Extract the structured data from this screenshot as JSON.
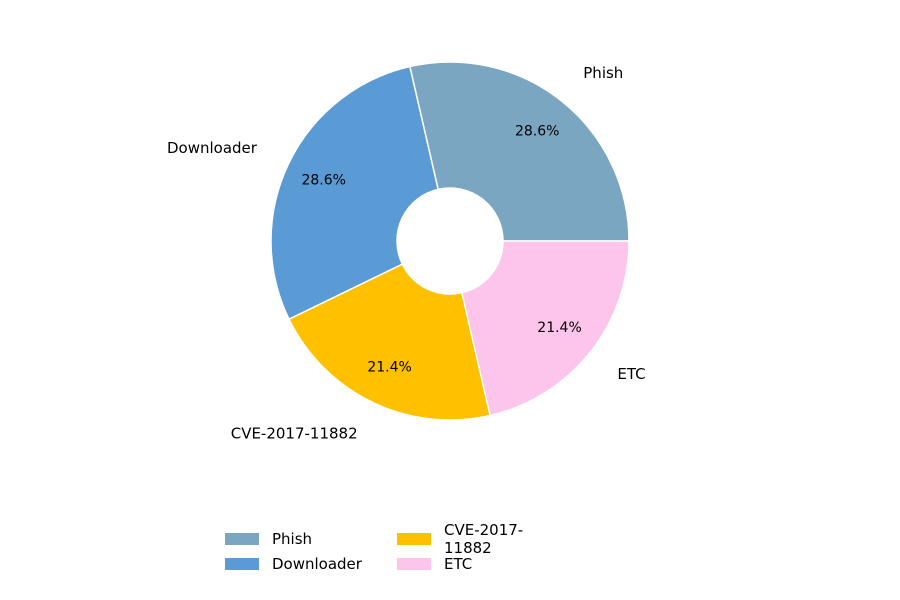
{
  "chart_data": {
    "type": "pie",
    "donut": true,
    "slices": [
      {
        "label": "Phish",
        "value": 28.6,
        "pct_label": "28.6%",
        "color": "#7ba6c1"
      },
      {
        "label": "Downloader",
        "value": 28.6,
        "pct_label": "28.6%",
        "color": "#5b9bd5"
      },
      {
        "label": "CVE-2017-11882",
        "value": 21.4,
        "pct_label": "21.4%",
        "color": "#ffc000"
      },
      {
        "label": "ETC",
        "value": 21.4,
        "pct_label": "21.4%",
        "color": "#fdc5ec"
      }
    ],
    "start_angle_deg": 0,
    "direction": "counterclockwise",
    "legend_position": "bottom-center",
    "legend_columns": 3
  }
}
